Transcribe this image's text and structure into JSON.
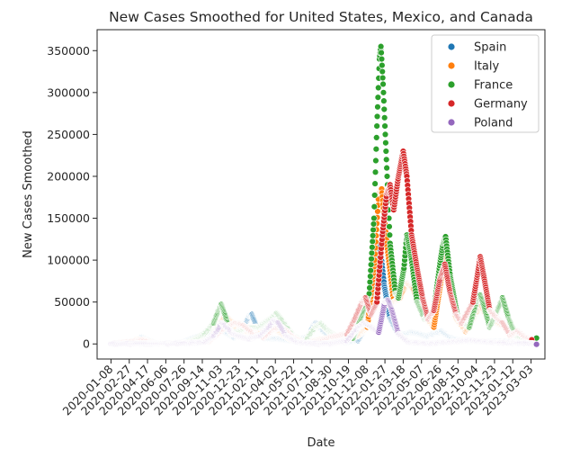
{
  "chart_data": {
    "type": "scatter",
    "title": "New Cases Smoothed for United States, Mexico, and Canada",
    "xlabel": "Date",
    "ylabel": "New Cases Smoothed",
    "xlim": [
      "2019-12-01",
      "2023-04-10"
    ],
    "ylim": [
      -18000,
      375000
    ],
    "x_ticks": [
      "2020-01-08",
      "2020-02-27",
      "2020-04-17",
      "2020-06-06",
      "2020-07-26",
      "2020-09-14",
      "2020-11-03",
      "2020-12-23",
      "2021-02-11",
      "2021-04-02",
      "2021-05-22",
      "2021-07-11",
      "2021-08-30",
      "2021-10-19",
      "2021-12-08",
      "2022-01-27",
      "2022-03-18",
      "2022-05-07",
      "2022-06-26",
      "2022-08-15",
      "2022-10-04",
      "2022-11-23",
      "2023-01-12",
      "2023-03-03"
    ],
    "y_ticks": [
      0,
      50000,
      100000,
      150000,
      200000,
      250000,
      300000,
      350000
    ],
    "grid": false,
    "legend_position": "top-right",
    "series": [
      {
        "name": "Spain",
        "color": "#1f77b4",
        "points": [
          [
            "2020-01-08",
            0
          ],
          [
            "2020-03-10",
            0
          ],
          [
            "2020-03-20",
            3000
          ],
          [
            "2020-04-01",
            8000
          ],
          [
            "2020-04-15",
            5000
          ],
          [
            "2020-05-10",
            1000
          ],
          [
            "2020-06-20",
            400
          ],
          [
            "2020-07-25",
            2000
          ],
          [
            "2020-08-20",
            7000
          ],
          [
            "2020-09-15",
            10000
          ],
          [
            "2020-10-10",
            13000
          ],
          [
            "2020-10-28",
            18000
          ],
          [
            "2020-11-15",
            14000
          ],
          [
            "2020-12-10",
            8000
          ],
          [
            "2021-01-05",
            20000
          ],
          [
            "2021-01-20",
            33000
          ],
          [
            "2021-01-28",
            35000
          ],
          [
            "2021-02-10",
            20000
          ],
          [
            "2021-03-01",
            7000
          ],
          [
            "2021-04-10",
            6000
          ],
          [
            "2021-05-10",
            4000
          ],
          [
            "2021-07-01",
            8000
          ],
          [
            "2021-07-15",
            22000
          ],
          [
            "2021-07-22",
            25000
          ],
          [
            "2021-08-05",
            18000
          ],
          [
            "2021-09-01",
            5000
          ],
          [
            "2021-10-10",
            2000
          ],
          [
            "2021-11-15",
            4000
          ],
          [
            "2021-12-10",
            25000
          ],
          [
            "2021-12-28",
            80000
          ],
          [
            "2022-01-05",
            110000
          ],
          [
            "2022-01-13",
            120000
          ],
          [
            "2022-01-25",
            70000
          ],
          [
            "2022-02-10",
            30000
          ],
          [
            "2022-03-01",
            14000
          ],
          [
            "2022-03-20",
            11000
          ],
          [
            "2022-04-10",
            14000
          ],
          [
            "2022-05-01",
            12000
          ],
          [
            "2022-05-20",
            9000
          ],
          [
            "2022-06-10",
            12000
          ],
          [
            "2022-07-01",
            15000
          ],
          [
            "2022-07-10",
            12000
          ],
          [
            "2022-08-01",
            6000
          ],
          [
            "2022-09-01",
            4000
          ],
          [
            "2022-10-15",
            3000
          ],
          [
            "2022-12-01",
            3000
          ],
          [
            "2023-01-15",
            2500
          ],
          [
            "2023-03-05",
            1500
          ]
        ]
      },
      {
        "name": "Italy",
        "color": "#ff7f0e",
        "points": [
          [
            "2020-01-08",
            0
          ],
          [
            "2020-03-01",
            1000
          ],
          [
            "2020-03-20",
            5500
          ],
          [
            "2020-04-05",
            4500
          ],
          [
            "2020-05-01",
            1500
          ],
          [
            "2020-06-20",
            300
          ],
          [
            "2020-08-20",
            1000
          ],
          [
            "2020-10-01",
            2500
          ],
          [
            "2020-10-25",
            18000
          ],
          [
            "2020-11-15",
            34000
          ],
          [
            "2020-11-25",
            30000
          ],
          [
            "2020-12-20",
            17000
          ],
          [
            "2021-01-10",
            15000
          ],
          [
            "2021-02-15",
            13000
          ],
          [
            "2021-03-15",
            22000
          ],
          [
            "2021-04-10",
            15000
          ],
          [
            "2021-05-10",
            6000
          ],
          [
            "2021-06-20",
            1000
          ],
          [
            "2021-08-01",
            5000
          ],
          [
            "2021-08-20",
            6500
          ],
          [
            "2021-10-01",
            3000
          ],
          [
            "2021-11-15",
            10000
          ],
          [
            "2021-12-10",
            20000
          ],
          [
            "2021-12-30",
            100000
          ],
          [
            "2022-01-10",
            180000
          ],
          [
            "2022-01-18",
            185000
          ],
          [
            "2022-02-01",
            120000
          ],
          [
            "2022-02-20",
            50000
          ],
          [
            "2022-03-10",
            55000
          ],
          [
            "2022-03-28",
            72000
          ],
          [
            "2022-04-15",
            65000
          ],
          [
            "2022-05-10",
            35000
          ],
          [
            "2022-06-10",
            20000
          ],
          [
            "2022-07-01",
            80000
          ],
          [
            "2022-07-10",
            105000
          ],
          [
            "2022-07-20",
            95000
          ],
          [
            "2022-08-10",
            30000
          ],
          [
            "2022-09-05",
            15000
          ],
          [
            "2022-10-01",
            35000
          ],
          [
            "2022-10-18",
            45000
          ],
          [
            "2022-11-05",
            30000
          ],
          [
            "2022-12-01",
            25000
          ],
          [
            "2022-12-20",
            20000
          ],
          [
            "2023-01-10",
            12000
          ],
          [
            "2023-02-10",
            6000
          ],
          [
            "2023-03-05",
            3000
          ]
        ]
      },
      {
        "name": "France",
        "color": "#2ca02c",
        "points": [
          [
            "2020-01-08",
            0
          ],
          [
            "2020-03-15",
            3000
          ],
          [
            "2020-04-05",
            5000
          ],
          [
            "2020-05-10",
            1000
          ],
          [
            "2020-06-20",
            500
          ],
          [
            "2020-08-01",
            1500
          ],
          [
            "2020-08-25",
            5000
          ],
          [
            "2020-09-20",
            12000
          ],
          [
            "2020-10-15",
            25000
          ],
          [
            "2020-10-28",
            40000
          ],
          [
            "2020-11-05",
            47000
          ],
          [
            "2020-11-15",
            35000
          ],
          [
            "2020-12-01",
            12000
          ],
          [
            "2020-12-25",
            15000
          ],
          [
            "2021-01-15",
            20000
          ],
          [
            "2021-02-15",
            20000
          ],
          [
            "2021-03-20",
            30000
          ],
          [
            "2021-04-05",
            36000
          ],
          [
            "2021-04-20",
            28000
          ],
          [
            "2021-05-20",
            10000
          ],
          [
            "2021-06-20",
            2000
          ],
          [
            "2021-07-20",
            20000
          ],
          [
            "2021-08-05",
            24000
          ],
          [
            "2021-08-25",
            15000
          ],
          [
            "2021-10-01",
            5000
          ],
          [
            "2021-11-01",
            7000
          ],
          [
            "2021-11-25",
            35000
          ],
          [
            "2021-12-15",
            60000
          ],
          [
            "2021-12-28",
            150000
          ],
          [
            "2022-01-05",
            260000
          ],
          [
            "2022-01-12",
            340000
          ],
          [
            "2022-01-16",
            355000
          ],
          [
            "2022-01-22",
            310000
          ],
          [
            "2022-01-30",
            230000
          ],
          [
            "2022-02-10",
            120000
          ],
          [
            "2022-02-25",
            60000
          ],
          [
            "2022-03-05",
            55000
          ],
          [
            "2022-03-20",
            90000
          ],
          [
            "2022-03-28",
            130000
          ],
          [
            "2022-04-10",
            100000
          ],
          [
            "2022-04-25",
            50000
          ],
          [
            "2022-05-15",
            30000
          ],
          [
            "2022-06-10",
            40000
          ],
          [
            "2022-06-28",
            100000
          ],
          [
            "2022-07-05",
            120000
          ],
          [
            "2022-07-12",
            128000
          ],
          [
            "2022-07-25",
            80000
          ],
          [
            "2022-08-15",
            30000
          ],
          [
            "2022-09-15",
            20000
          ],
          [
            "2022-10-05",
            50000
          ],
          [
            "2022-10-15",
            58000
          ],
          [
            "2022-10-25",
            45000
          ],
          [
            "2022-11-10",
            20000
          ],
          [
            "2022-12-01",
            40000
          ],
          [
            "2022-12-15",
            55000
          ],
          [
            "2023-01-01",
            30000
          ],
          [
            "2023-01-20",
            10000
          ],
          [
            "2023-02-15",
            5000
          ],
          [
            "2023-03-05",
            5000
          ],
          [
            "2023-03-18",
            7000
          ]
        ]
      },
      {
        "name": "Germany",
        "color": "#d62728",
        "points": [
          [
            "2020-01-08",
            0
          ],
          [
            "2020-03-20",
            3500
          ],
          [
            "2020-04-05",
            5000
          ],
          [
            "2020-05-01",
            1000
          ],
          [
            "2020-06-20",
            400
          ],
          [
            "2020-08-20",
            1200
          ],
          [
            "2020-10-01",
            3000
          ],
          [
            "2020-10-25",
            12000
          ],
          [
            "2020-11-15",
            20000
          ],
          [
            "2020-12-15",
            25000
          ],
          [
            "2021-01-05",
            22000
          ],
          [
            "2021-02-01",
            12000
          ],
          [
            "2021-03-01",
            8000
          ],
          [
            "2021-03-25",
            17000
          ],
          [
            "2021-04-20",
            20000
          ],
          [
            "2021-05-20",
            8000
          ],
          [
            "2021-06-20",
            800
          ],
          [
            "2021-08-01",
            3000
          ],
          [
            "2021-09-01",
            8000
          ],
          [
            "2021-10-15",
            12000
          ],
          [
            "2021-11-05",
            30000
          ],
          [
            "2021-11-25",
            50000
          ],
          [
            "2021-12-05",
            55000
          ],
          [
            "2021-12-20",
            35000
          ],
          [
            "2022-01-05",
            50000
          ],
          [
            "2022-01-20",
            130000
          ],
          [
            "2022-02-01",
            180000
          ],
          [
            "2022-02-10",
            190000
          ],
          [
            "2022-02-20",
            160000
          ],
          [
            "2022-03-05",
            200000
          ],
          [
            "2022-03-18",
            230000
          ],
          [
            "2022-03-28",
            200000
          ],
          [
            "2022-04-10",
            130000
          ],
          [
            "2022-04-25",
            90000
          ],
          [
            "2022-05-10",
            55000
          ],
          [
            "2022-05-25",
            30000
          ],
          [
            "2022-06-10",
            40000
          ],
          [
            "2022-06-28",
            80000
          ],
          [
            "2022-07-10",
            95000
          ],
          [
            "2022-07-25",
            60000
          ],
          [
            "2022-08-10",
            35000
          ],
          [
            "2022-08-25",
            25000
          ],
          [
            "2022-09-25",
            50000
          ],
          [
            "2022-10-10",
            90000
          ],
          [
            "2022-10-15",
            104000
          ],
          [
            "2022-10-25",
            80000
          ],
          [
            "2022-11-10",
            40000
          ],
          [
            "2022-12-01",
            30000
          ],
          [
            "2022-12-15",
            25000
          ],
          [
            "2023-01-05",
            10000
          ],
          [
            "2023-01-25",
            15000
          ],
          [
            "2023-02-15",
            8000
          ],
          [
            "2023-03-05",
            5000
          ]
        ]
      },
      {
        "name": "Poland",
        "color": "#9467bd",
        "points": [
          [
            "2020-01-08",
            0
          ],
          [
            "2020-04-01",
            300
          ],
          [
            "2020-06-01",
            400
          ],
          [
            "2020-08-01",
            700
          ],
          [
            "2020-09-20",
            2000
          ],
          [
            "2020-10-15",
            10000
          ],
          [
            "2020-10-28",
            18000
          ],
          [
            "2020-11-05",
            25000
          ],
          [
            "2020-11-15",
            22000
          ],
          [
            "2020-12-05",
            12000
          ],
          [
            "2020-12-25",
            9000
          ],
          [
            "2021-01-20",
            6000
          ],
          [
            "2021-02-20",
            10000
          ],
          [
            "2021-03-15",
            20000
          ],
          [
            "2021-03-28",
            28000
          ],
          [
            "2021-04-10",
            25000
          ],
          [
            "2021-05-01",
            10000
          ],
          [
            "2021-06-01",
            2000
          ],
          [
            "2021-07-15",
            150
          ],
          [
            "2021-09-01",
            300
          ],
          [
            "2021-10-15",
            4000
          ],
          [
            "2021-11-15",
            20000
          ],
          [
            "2021-12-01",
            25000
          ],
          [
            "2021-12-20",
            20000
          ],
          [
            "2022-01-10",
            14000
          ],
          [
            "2022-01-27",
            50000
          ],
          [
            "2022-02-05",
            52000
          ],
          [
            "2022-02-15",
            40000
          ],
          [
            "2022-03-05",
            12000
          ],
          [
            "2022-04-01",
            2000
          ],
          [
            "2022-06-01",
            400
          ],
          [
            "2022-08-01",
            2500
          ],
          [
            "2022-09-15",
            4500
          ],
          [
            "2022-10-15",
            3000
          ],
          [
            "2022-12-01",
            1500
          ],
          [
            "2023-01-15",
            1000
          ],
          [
            "2023-03-05",
            600
          ],
          [
            "2023-03-18",
            -500
          ]
        ]
      }
    ]
  }
}
